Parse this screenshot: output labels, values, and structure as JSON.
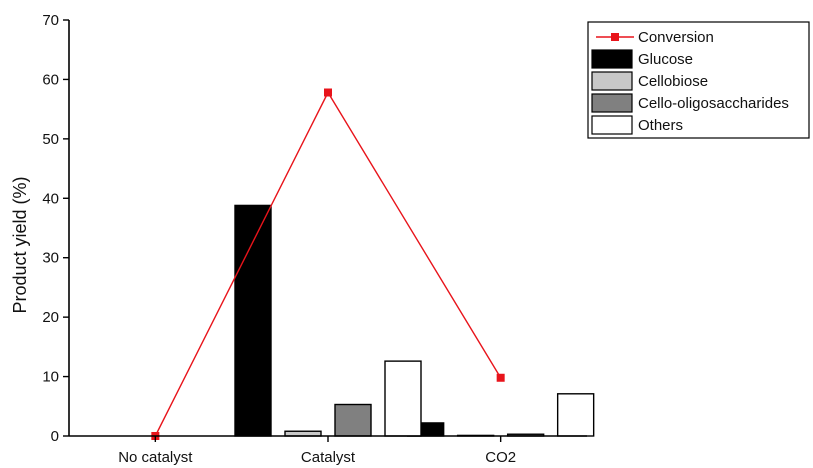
{
  "chart_data": {
    "type": "bar",
    "title": "",
    "xlabel": "",
    "ylabel": "Product yield (%)",
    "ylim": [
      0,
      70
    ],
    "yticks": [
      0,
      10,
      20,
      30,
      40,
      50,
      60,
      70
    ],
    "categories": [
      "No catalyst",
      "Catalyst",
      "CO2"
    ],
    "series": [
      {
        "name": "Glucose",
        "color": "#000000",
        "values": [
          0,
          38.8,
          2.2
        ]
      },
      {
        "name": "Cellobiose",
        "color": "#c8c8c8",
        "values": [
          0,
          0.8,
          0.1
        ]
      },
      {
        "name": "Cello-oligosaccharides",
        "color": "#808080",
        "values": [
          0,
          5.3,
          0.3
        ]
      },
      {
        "name": "Others",
        "color": "#ffffff",
        "values": [
          0,
          12.6,
          7.1
        ]
      }
    ],
    "line_series": {
      "name": "Conversion",
      "color": "#e8141b",
      "values": [
        0,
        57.8,
        9.8
      ]
    },
    "grid": false,
    "legend_position": "top-right"
  }
}
